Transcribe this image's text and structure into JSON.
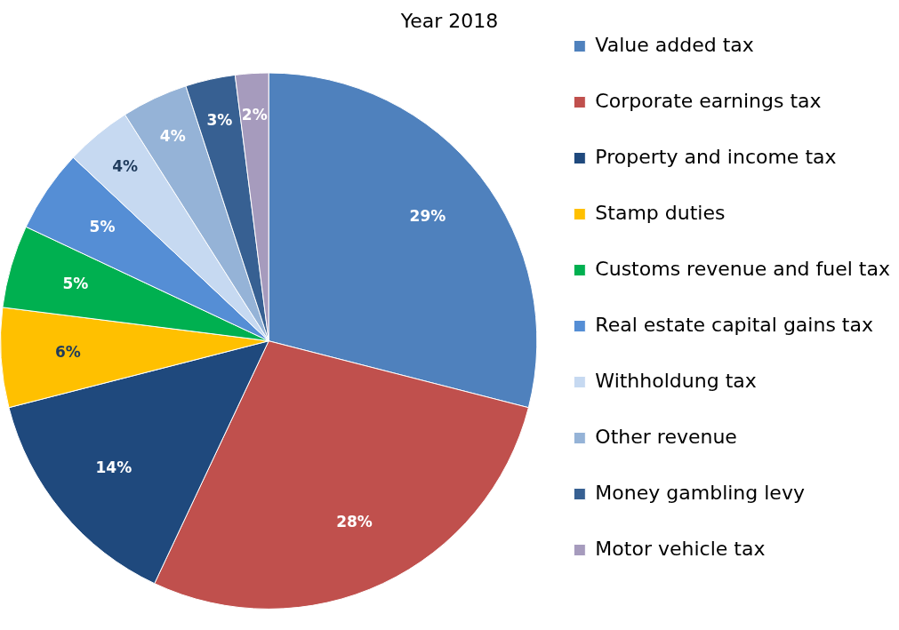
{
  "chart_data": {
    "type": "pie",
    "title": "Year 2018",
    "categories": [
      "Value added tax",
      "Corporate earnings tax",
      "Property and income tax",
      "Stamp duties",
      "Customs revenue and fuel tax",
      "Real estate capital gains tax",
      "Withholdung tax",
      "Other revenue",
      "Money gambling levy",
      "Motor vehicle tax"
    ],
    "values": [
      29,
      28,
      14,
      6,
      5,
      5,
      4,
      4,
      3,
      2
    ],
    "colors": [
      "#4f81bd",
      "#c0504d",
      "#1f497d",
      "#ffc000",
      "#00b050",
      "#558ed5",
      "#c6d9f1",
      "#95b3d7",
      "#376092",
      "#a69bbd"
    ],
    "value_labels": [
      "29%",
      "28%",
      "14%",
      "6%",
      "5%",
      "5%",
      "4%",
      "4%",
      "3%",
      "2%"
    ],
    "legend": "right"
  }
}
